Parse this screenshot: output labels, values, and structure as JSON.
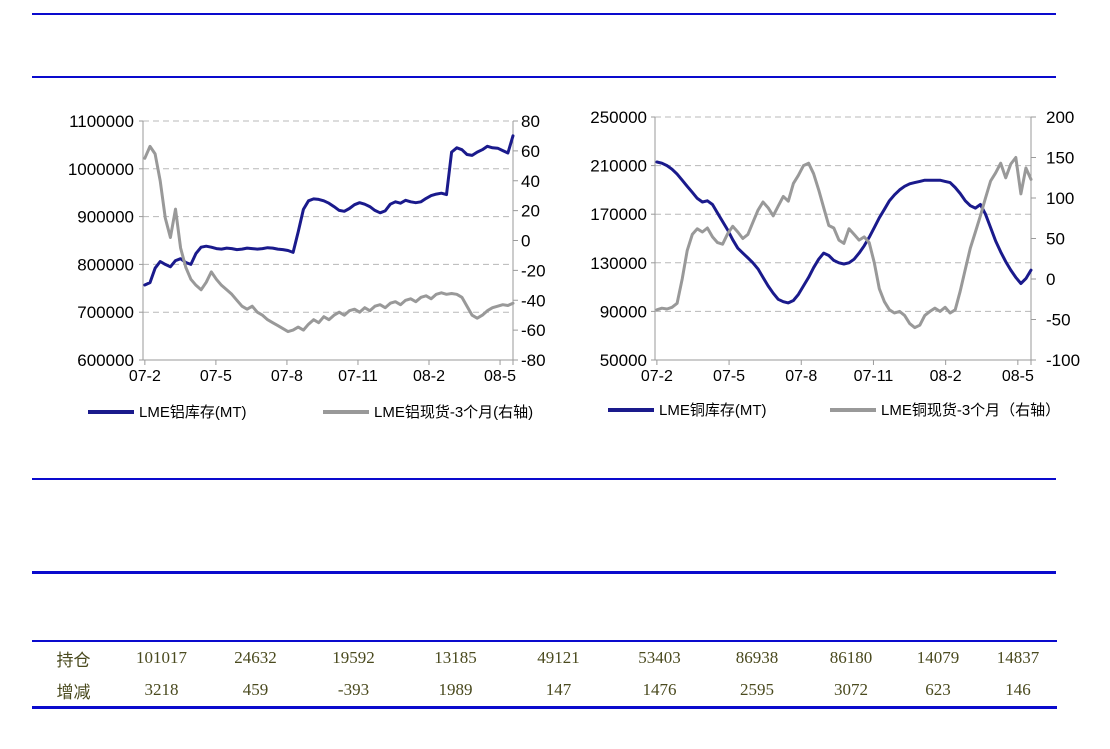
{
  "colors": {
    "rule_blue": "#0a0acd",
    "navy_series": "#1a1a8c",
    "gray_series": "#999999",
    "gridline": "#b8b8b8",
    "axis_line": "#9a9a9a",
    "table_text": "#4a4a1e"
  },
  "chart_data": [
    {
      "id": "aluminum",
      "type": "line",
      "x_labels": [
        "07-2",
        "07-5",
        "07-8",
        "07-11",
        "08-2",
        "08-5"
      ],
      "left_axis": {
        "min": 600000,
        "max": 1100000,
        "ticks": [
          "1100000",
          "1000000",
          "900000",
          "800000",
          "700000",
          "600000"
        ]
      },
      "right_axis": {
        "min": -80,
        "max": 80,
        "ticks": [
          "80",
          "60",
          "40",
          "20",
          "0",
          "-20",
          "-40",
          "-60",
          "-80"
        ]
      },
      "grid": "dashed-horizontal",
      "legend_position": "bottom",
      "series": [
        {
          "name": "LME铝库存(MT)",
          "axis": "left",
          "color": "#1a1a8c",
          "values": [
            757000,
            762000,
            792000,
            806000,
            800000,
            795000,
            808000,
            812000,
            804000,
            800000,
            823000,
            836000,
            838000,
            836000,
            833000,
            832000,
            834000,
            833000,
            831000,
            832000,
            834000,
            833000,
            832000,
            833000,
            835000,
            834000,
            832000,
            831000,
            829000,
            825000,
            868000,
            915000,
            933000,
            937000,
            936000,
            933000,
            928000,
            921000,
            913000,
            911000,
            917000,
            925000,
            929000,
            926000,
            921000,
            913000,
            908000,
            912000,
            926000,
            931000,
            928000,
            934000,
            931000,
            929000,
            931000,
            938000,
            944000,
            947000,
            949000,
            946000,
            1035000,
            1044000,
            1040000,
            1030000,
            1028000,
            1035000,
            1040000,
            1047000,
            1044000,
            1043000,
            1038000,
            1033000,
            1069000
          ]
        },
        {
          "name": "LME铝现货-3个月(右轴)",
          "axis": "right",
          "color": "#999999",
          "values": [
            55,
            63,
            58,
            40,
            15,
            2,
            21,
            -5,
            -18,
            -26,
            -30,
            -33,
            -28,
            -21,
            -26,
            -30,
            -33,
            -36,
            -40,
            -44,
            -46,
            -44,
            -48,
            -50,
            -53,
            -55,
            -57,
            -59,
            -61,
            -60,
            -58,
            -60,
            -56,
            -53,
            -55,
            -51,
            -53,
            -50,
            -48,
            -50,
            -47,
            -46,
            -48,
            -45,
            -47,
            -44,
            -43,
            -45,
            -42,
            -41,
            -43,
            -40,
            -39,
            -41,
            -38,
            -37,
            -39,
            -36,
            -35,
            -36,
            -35.5,
            -36,
            -38,
            -44,
            -50,
            -52,
            -50,
            -47,
            -45,
            -44,
            -43,
            -43.5,
            -42
          ]
        }
      ]
    },
    {
      "id": "copper",
      "type": "line",
      "x_labels": [
        "07-2",
        "07-5",
        "07-8",
        "07-11",
        "08-2",
        "08-5"
      ],
      "left_axis": {
        "min": 50000,
        "max": 250000,
        "ticks": [
          "250000",
          "210000",
          "170000",
          "130000",
          "90000",
          "50000"
        ]
      },
      "right_axis": {
        "min": -100,
        "max": 200,
        "ticks": [
          "200",
          "150",
          "100",
          "50",
          "0",
          "-50",
          "-100"
        ]
      },
      "grid": "dashed-horizontal",
      "legend_position": "bottom",
      "series": [
        {
          "name": "LME铜库存(MT)",
          "axis": "left",
          "color": "#1a1a8c",
          "values": [
            213000,
            212000,
            210000,
            207000,
            203000,
            198000,
            193000,
            188000,
            183000,
            180000,
            181000,
            178000,
            171000,
            164000,
            157000,
            149000,
            142000,
            138000,
            134000,
            130000,
            125000,
            118000,
            111000,
            105000,
            100000,
            98000,
            97000,
            99000,
            104000,
            111000,
            118000,
            126000,
            133000,
            138000,
            136000,
            132000,
            130000,
            129000,
            130000,
            133000,
            138000,
            144000,
            151000,
            159000,
            167000,
            174000,
            181000,
            186000,
            190000,
            193000,
            195000,
            196000,
            197000,
            198000,
            198000,
            198000,
            198000,
            197000,
            196000,
            192000,
            187000,
            181000,
            177000,
            175000,
            178000,
            170000,
            159000,
            148000,
            139000,
            131000,
            124000,
            118000,
            113000,
            117000,
            124000
          ]
        },
        {
          "name": "LME铜现货-3个月（右轴）",
          "axis": "right",
          "color": "#999999",
          "values": [
            -38,
            -36,
            -37,
            -35,
            -30,
            0,
            35,
            55,
            62,
            58,
            63,
            52,
            45,
            43,
            56,
            65,
            58,
            50,
            55,
            70,
            85,
            95,
            88,
            78,
            90,
            102,
            96,
            118,
            128,
            140,
            143,
            130,
            110,
            88,
            66,
            63,
            48,
            44,
            62,
            55,
            48,
            52,
            45,
            20,
            -12,
            -28,
            -38,
            -42,
            -40,
            -45,
            -55,
            -60,
            -57,
            -45,
            -40,
            -36,
            -40,
            -35,
            -42,
            -38,
            -15,
            12,
            38,
            58,
            78,
            100,
            121,
            131,
            143,
            125,
            142,
            150,
            105,
            137,
            123
          ]
        }
      ]
    }
  ],
  "table": {
    "rows": [
      {
        "label": "持仓",
        "values": [
          "101017",
          "24632",
          "19592",
          "13185",
          "49121",
          "53403",
          "86938",
          "86180",
          "14079",
          "14837"
        ]
      },
      {
        "label": "增减",
        "values": [
          "3218",
          "459",
          "-393",
          "1989",
          "147",
          "1476",
          "2595",
          "3072",
          "623",
          "146"
        ]
      }
    ]
  }
}
